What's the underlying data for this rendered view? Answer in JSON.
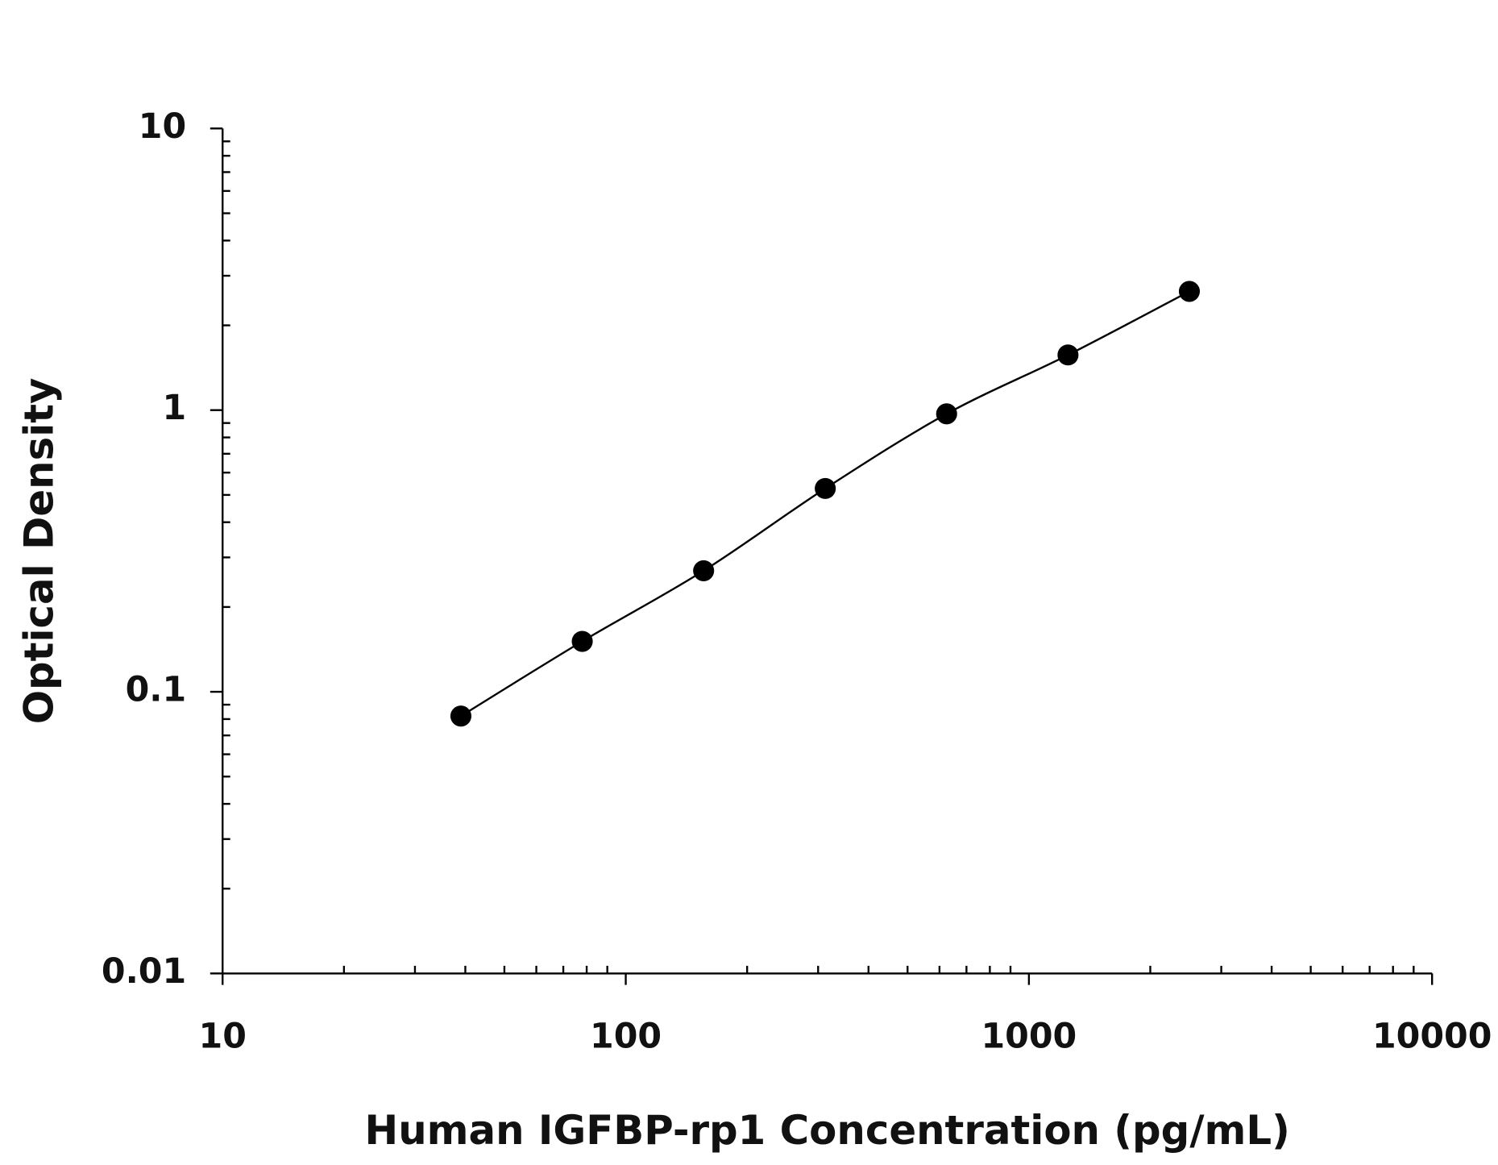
{
  "chart_data": {
    "type": "scatter",
    "x_label": "Human IGFBP-rp1 Concentration (pg/mL)",
    "y_label": "Optical Density",
    "x": [
      39,
      78,
      156,
      312.5,
      625,
      1250,
      2500
    ],
    "values": [
      0.082,
      0.151,
      0.269,
      0.527,
      0.97,
      1.57,
      2.64
    ],
    "color": "#000000",
    "fit_line": true,
    "x_log": true,
    "y_log": true,
    "xlim": [
      10,
      10000
    ],
    "ylim": [
      0.01,
      10
    ],
    "xticks": [
      10,
      100,
      1000,
      10000
    ],
    "yticks": [
      0.01,
      0.1,
      1,
      10
    ],
    "xminorticks": [
      20,
      30,
      40,
      50,
      60,
      70,
      80,
      90,
      200,
      300,
      400,
      500,
      600,
      700,
      800,
      900,
      2000,
      3000,
      4000,
      5000,
      6000,
      7000,
      8000,
      9000
    ],
    "yminorticks": [
      0.02,
      0.03,
      0.04,
      0.05,
      0.06,
      0.07,
      0.08,
      0.09,
      0.2,
      0.3,
      0.4,
      0.5,
      0.6,
      0.7,
      0.8,
      0.9,
      2,
      3,
      4,
      5,
      6,
      7,
      8,
      9
    ]
  }
}
